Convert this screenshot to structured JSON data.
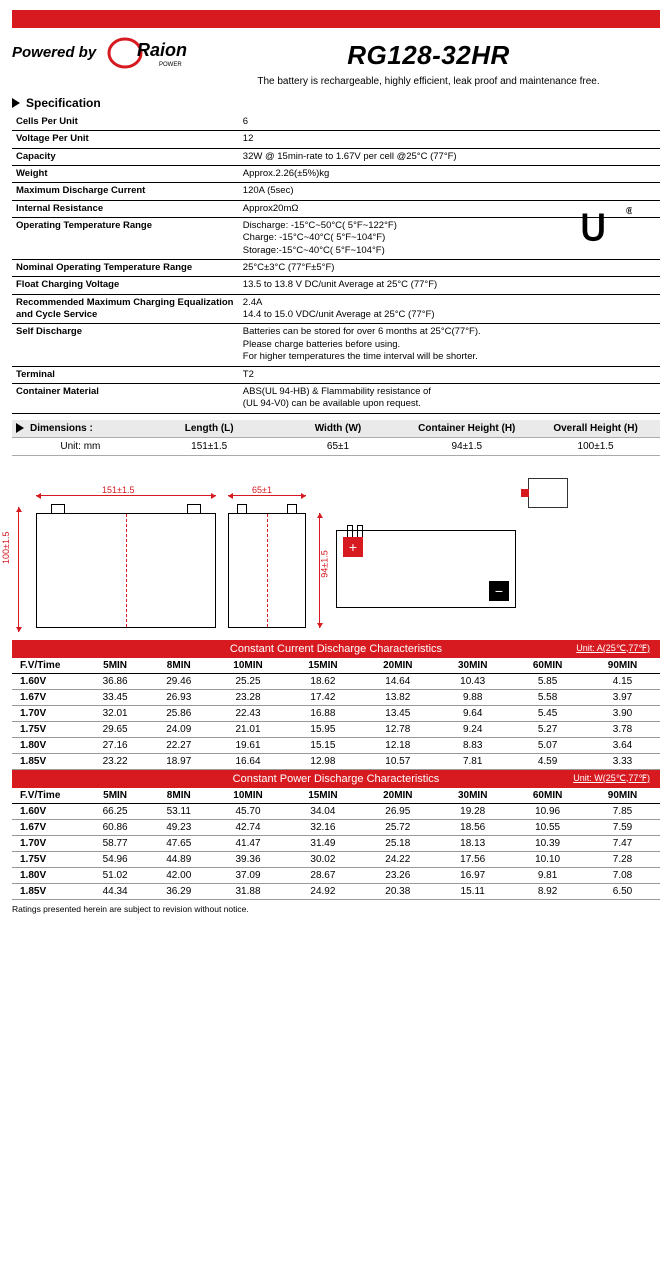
{
  "header": {
    "powered_by": "Powered by",
    "brand": "Raion",
    "brand_sub": "POWER",
    "model": "RG128-32HR",
    "subtitle": "The battery is rechargeable, highly efficient, leak proof and maintenance free."
  },
  "spec_section_title": "Specification",
  "specs": [
    {
      "k": "Cells Per Unit",
      "v": "6"
    },
    {
      "k": "Voltage Per Unit",
      "v": "12"
    },
    {
      "k": "Capacity",
      "v": "32W @ 15min-rate to 1.67V per cell @25°C (77°F)"
    },
    {
      "k": "Weight",
      "v": "Approx.2.26(±5%)kg"
    },
    {
      "k": "Maximum Discharge Current",
      "v": "120A (5sec)"
    },
    {
      "k": "Internal Resistance",
      "v": "Approx20mΩ"
    },
    {
      "k": "Operating Temperature Range",
      "v": "Discharge: -15°C~50°C( 5°F~122°F)\nCharge: -15°C~40°C( 5°F~104°F)\nStorage:-15°C~40°C( 5°F~104°F)"
    },
    {
      "k": "Nominal Operating Temperature Range",
      "v": "25°C±3°C (77°F±5°F)"
    },
    {
      "k": "Float Charging Voltage",
      "v": "13.5 to 13.8 V DC/unit Average at 25°C (77°F)"
    },
    {
      "k": "Recommended Maximum Charging Equalization and Cycle Service",
      "v": "2.4A\n14.4 to 15.0 VDC/unit Average at 25°C (77°F)"
    },
    {
      "k": "Self Discharge",
      "v": "Batteries can be stored for over 6 months at 25°C(77°F).\nPlease charge batteries before using.\nFor higher temperatures the time interval will be shorter."
    },
    {
      "k": "Terminal",
      "v": "T2"
    },
    {
      "k": "Container Material",
      "v": "ABS(UL 94-HB) & Flammability resistance of\n(UL 94-V0) can be available upon request."
    }
  ],
  "dimensions": {
    "section": "Dimensions :",
    "unit_label": "Unit: mm",
    "headers": [
      "Length (L)",
      "Width (W)",
      "Container Height (H)",
      "Overall Height (H)"
    ],
    "values": [
      "151±1.5",
      "65±1",
      "94±1.5",
      "100±1.5"
    ]
  },
  "drawing_labels": {
    "length": "151±1.5",
    "width": "65±1",
    "cheight": "94±1.5",
    "oheight": "100±1.5"
  },
  "current_table": {
    "title": "Constant Current Discharge Characteristics",
    "unit": "Unit: A(25℃,77℉)",
    "headers": [
      "F.V/Time",
      "5MIN",
      "8MIN",
      "10MIN",
      "15MIN",
      "20MIN",
      "30MIN",
      "60MIN",
      "90MIN"
    ],
    "rows": [
      [
        "1.60V",
        "36.86",
        "29.46",
        "25.25",
        "18.62",
        "14.64",
        "10.43",
        "5.85",
        "4.15"
      ],
      [
        "1.67V",
        "33.45",
        "26.93",
        "23.28",
        "17.42",
        "13.82",
        "9.88",
        "5.58",
        "3.97"
      ],
      [
        "1.70V",
        "32.01",
        "25.86",
        "22.43",
        "16.88",
        "13.45",
        "9.64",
        "5.45",
        "3.90"
      ],
      [
        "1.75V",
        "29.65",
        "24.09",
        "21.01",
        "15.95",
        "12.78",
        "9.24",
        "5.27",
        "3.78"
      ],
      [
        "1.80V",
        "27.16",
        "22.27",
        "19.61",
        "15.15",
        "12.18",
        "8.83",
        "5.07",
        "3.64"
      ],
      [
        "1.85V",
        "23.22",
        "18.97",
        "16.64",
        "12.98",
        "10.57",
        "7.81",
        "4.59",
        "3.33"
      ]
    ]
  },
  "power_table": {
    "title": "Constant Power Discharge Characteristics",
    "unit": "Unit: W(25℃,77℉)",
    "headers": [
      "F.V/Time",
      "5MIN",
      "8MIN",
      "10MIN",
      "15MIN",
      "20MIN",
      "30MIN",
      "60MIN",
      "90MIN"
    ],
    "rows": [
      [
        "1.60V",
        "66.25",
        "53.11",
        "45.70",
        "34.04",
        "26.95",
        "19.28",
        "10.96",
        "7.85"
      ],
      [
        "1.67V",
        "60.86",
        "49.23",
        "42.74",
        "32.16",
        "25.72",
        "18.56",
        "10.55",
        "7.59"
      ],
      [
        "1.70V",
        "58.77",
        "47.65",
        "41.47",
        "31.49",
        "25.18",
        "18.13",
        "10.39",
        "7.47"
      ],
      [
        "1.75V",
        "54.96",
        "44.89",
        "39.36",
        "30.02",
        "24.22",
        "17.56",
        "10.10",
        "7.28"
      ],
      [
        "1.80V",
        "51.02",
        "42.00",
        "37.09",
        "28.67",
        "23.26",
        "16.97",
        "9.81",
        "7.08"
      ],
      [
        "1.85V",
        "44.34",
        "36.29",
        "31.88",
        "24.92",
        "20.38",
        "15.11",
        "8.92",
        "6.50"
      ]
    ]
  },
  "footnote": "Ratings presented herein are subject to revision without notice.",
  "colors": {
    "accent": "#d71920"
  }
}
